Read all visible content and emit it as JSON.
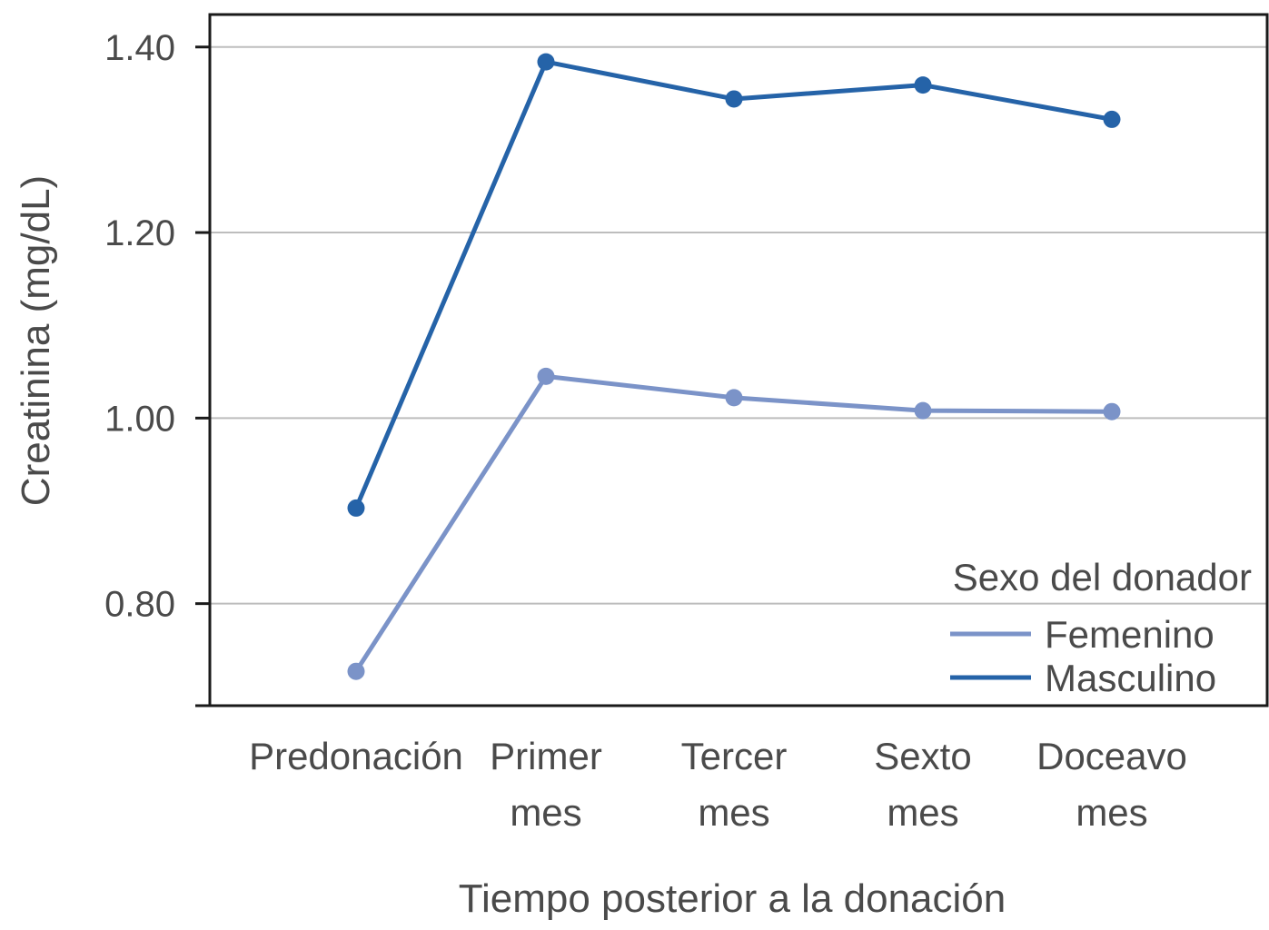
{
  "chart_data": {
    "type": "line",
    "xlabel": "Tiempo posterior a la donación",
    "ylabel": "Creatinina (mg/dL)",
    "categories": [
      [
        "Predonación"
      ],
      [
        "Primer",
        "mes"
      ],
      [
        "Tercer",
        "mes"
      ],
      [
        "Sexto",
        "mes"
      ],
      [
        "Doceavo",
        "mes"
      ]
    ],
    "yticks": [
      "0.80",
      "1.00",
      "1.20",
      "1.40"
    ],
    "ytick_values": [
      0.8,
      1.0,
      1.2,
      1.4
    ],
    "ylim": [
      0.69,
      1.435
    ],
    "grid": true,
    "legend": {
      "title": "Sexo del donador",
      "position": "bottom-right"
    },
    "series": [
      {
        "name": "Femenino",
        "color": "#7b93c8",
        "values": [
          0.727,
          1.045,
          1.022,
          1.008,
          1.007
        ]
      },
      {
        "name": "Masculino",
        "color": "#2563a8",
        "values": [
          0.903,
          1.384,
          1.344,
          1.359,
          1.322
        ]
      }
    ]
  }
}
